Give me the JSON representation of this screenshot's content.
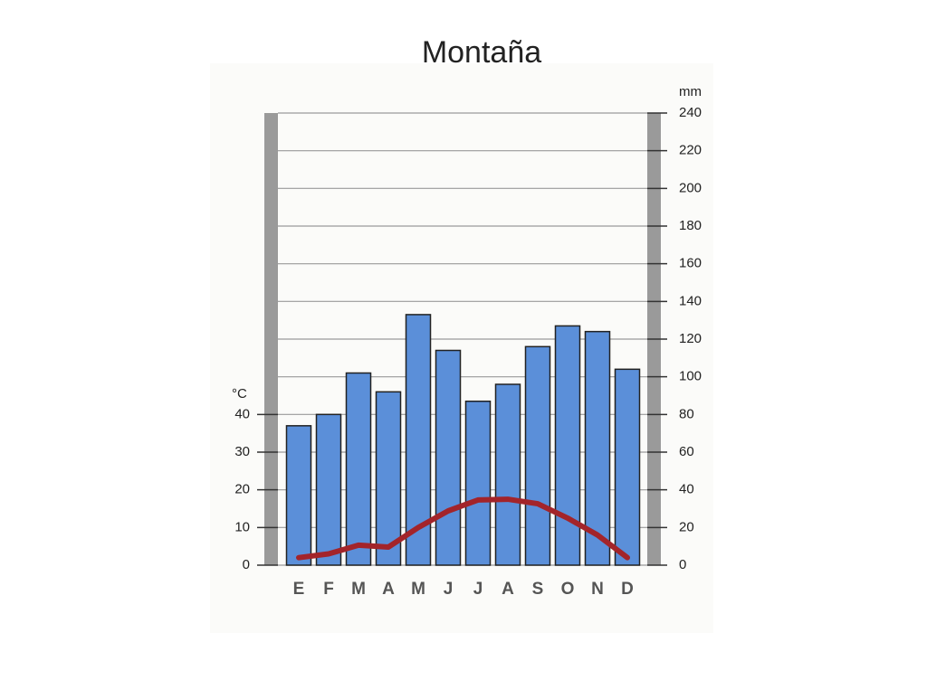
{
  "chart_data": {
    "type": "bar",
    "title": "Montaña",
    "categories": [
      "E",
      "F",
      "M",
      "A",
      "M",
      "J",
      "J",
      "A",
      "S",
      "O",
      "N",
      "D"
    ],
    "series": [
      {
        "type": "bar",
        "axis": "y2",
        "color": "#5b8fd9",
        "values": [
          74,
          80,
          102,
          92,
          133,
          114,
          87,
          96,
          116,
          127,
          124,
          104
        ]
      },
      {
        "type": "line",
        "axis": "y",
        "color": "#a3242a",
        "values": [
          2,
          3,
          5.3,
          4.8,
          10,
          14.4,
          17.3,
          17.5,
          16.3,
          12.5,
          8,
          2
        ]
      }
    ],
    "y_label": "°C",
    "ylim": [
      0,
      120
    ],
    "yticks": [
      0,
      10,
      20,
      30,
      40
    ],
    "y2_label": "mm",
    "y2lim": [
      0,
      240
    ],
    "y2ticks": [
      0,
      20,
      40,
      60,
      80,
      100,
      120,
      140,
      160,
      180,
      200,
      220,
      240
    ],
    "grid": true
  }
}
